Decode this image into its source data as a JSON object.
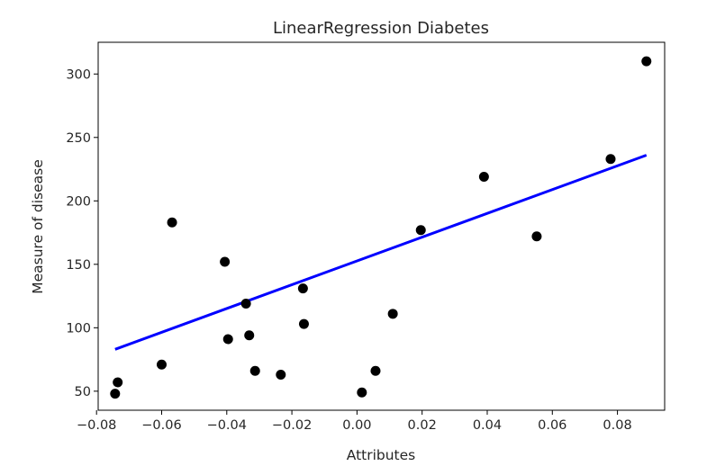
{
  "chart_data": {
    "type": "scatter",
    "title": "LinearRegression Diabetes",
    "xlabel": "Attributes",
    "ylabel": "Measure of disease",
    "xlim": [
      -0.0795,
      0.0945
    ],
    "ylim": [
      35,
      325
    ],
    "x_ticks": [
      -0.08,
      -0.06,
      -0.04,
      -0.02,
      0.0,
      0.02,
      0.04,
      0.06,
      0.08
    ],
    "x_tick_labels": [
      "−0.08",
      "−0.06",
      "−0.04",
      "−0.02",
      "0.00",
      "0.02",
      "0.04",
      "0.06",
      "0.08"
    ],
    "y_ticks": [
      50,
      100,
      150,
      200,
      250,
      300
    ],
    "y_tick_labels": [
      "50",
      "100",
      "150",
      "200",
      "250",
      "300"
    ],
    "grid": false,
    "colors": {
      "points": "#000000",
      "line": "#0000ff",
      "axes": "#000000"
    },
    "series": [
      {
        "type": "scatter",
        "x": [
          -0.0743,
          -0.0735,
          -0.06,
          -0.0568,
          -0.0406,
          -0.0396,
          -0.0341,
          -0.0331,
          -0.0313,
          -0.0234,
          -0.0166,
          -0.0163,
          0.0015,
          0.0057,
          0.011,
          0.0196,
          0.039,
          0.0552,
          0.0779,
          0.0889
        ],
        "y": [
          48,
          57,
          71,
          183,
          152,
          91,
          119,
          94,
          66,
          63,
          131,
          103,
          49,
          66,
          111,
          177,
          219,
          172,
          233,
          310
        ]
      },
      {
        "type": "line",
        "x": [
          -0.0743,
          0.0889
        ],
        "y": [
          83,
          236
        ]
      }
    ]
  }
}
